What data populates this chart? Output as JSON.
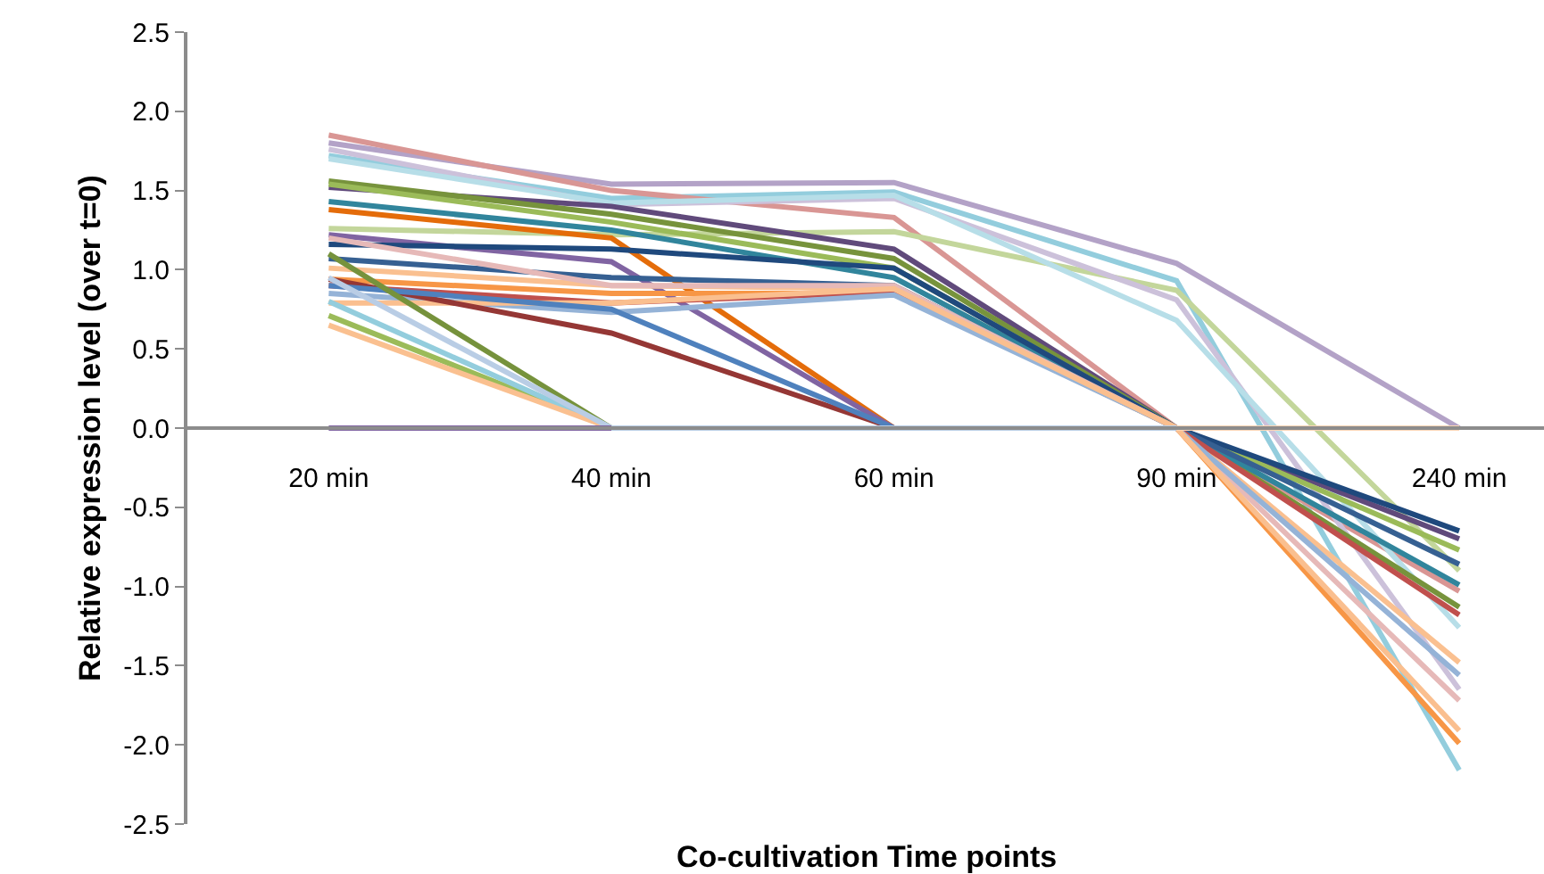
{
  "chart_data": {
    "type": "line",
    "xlabel": "Co-cultivation Time points",
    "ylabel": "Relative expression level (over t=0)",
    "categories": [
      "20 min",
      "40 min",
      "60 min",
      "90 min",
      "240 min"
    ],
    "ylim": [
      -2.5,
      2.5
    ],
    "yticks": [
      {
        "value": -2.5,
        "label": "-2.5"
      },
      {
        "value": -2.0,
        "label": "-2.0"
      },
      {
        "value": -1.5,
        "label": "-1.5"
      },
      {
        "value": -1.0,
        "label": "-1.0"
      },
      {
        "value": -0.5,
        "label": "-0.5"
      },
      {
        "value": 0,
        "label": "0.0"
      },
      {
        "value": 0.5,
        "label": "0.5"
      },
      {
        "value": 1.0,
        "label": "1.0"
      },
      {
        "value": 1.5,
        "label": "1.5"
      },
      {
        "value": 2.0,
        "label": "2.0"
      },
      {
        "value": 2.5,
        "label": "2.5"
      }
    ],
    "marker": "none",
    "line_style": "solid",
    "series": [
      {
        "color": "#b3a2c7",
        "values": [
          1.8,
          1.54,
          1.55,
          1.04,
          0.0
        ]
      },
      {
        "color": "#93cddd",
        "values": [
          1.72,
          1.45,
          1.49,
          0.93,
          -2.16
        ]
      },
      {
        "color": "#d99694",
        "values": [
          1.85,
          1.5,
          1.33,
          0.0,
          -1.03
        ]
      },
      {
        "color": "#c3d69b",
        "values": [
          1.26,
          1.22,
          1.24,
          0.87,
          -0.9
        ]
      },
      {
        "color": "#ccc1da",
        "values": [
          1.76,
          1.41,
          1.45,
          0.81,
          -1.65
        ]
      },
      {
        "color": "#b7dee8",
        "values": [
          1.7,
          1.42,
          1.47,
          0.68,
          -1.26
        ]
      },
      {
        "color": "#604a7b",
        "values": [
          1.52,
          1.4,
          1.13,
          0.0,
          -0.7
        ]
      },
      {
        "color": "#77933c",
        "values": [
          1.56,
          1.35,
          1.07,
          0.0,
          -1.13
        ]
      },
      {
        "color": "#9bbb59",
        "values": [
          1.54,
          1.3,
          1.01,
          0.0,
          -0.77
        ]
      },
      {
        "color": "#31859c",
        "values": [
          1.43,
          1.25,
          0.95,
          0.0,
          -0.99
        ]
      },
      {
        "color": "#e46c0a",
        "values": [
          1.38,
          1.2,
          0.0,
          null,
          null
        ]
      },
      {
        "color": "#8064a2",
        "values": [
          1.22,
          1.05,
          0.0,
          null,
          null
        ]
      },
      {
        "color": "#1f497d",
        "values": [
          1.16,
          1.13,
          1.01,
          0.0,
          -0.65
        ]
      },
      {
        "color": "#366092",
        "values": [
          1.07,
          0.95,
          0.9,
          0.0,
          -0.86
        ]
      },
      {
        "color": "#fac090",
        "values": [
          1.01,
          0.9,
          0.88,
          0.0,
          -1.48
        ]
      },
      {
        "color": "#f79646",
        "values": [
          0.94,
          0.85,
          0.85,
          0.0,
          -1.99
        ]
      },
      {
        "color": "#e6b9b8",
        "values": [
          1.2,
          0.9,
          0.9,
          0.0,
          -1.72
        ]
      },
      {
        "color": "#c0504d",
        "values": [
          0.9,
          0.79,
          0.86,
          0.0,
          -1.18
        ]
      },
      {
        "color": "#95b3d7",
        "values": [
          0.85,
          0.73,
          0.84,
          0.0,
          -1.56
        ]
      },
      {
        "color": "#fabf8f",
        "values": [
          0.79,
          0.79,
          0.88,
          0.0,
          -1.91
        ]
      },
      {
        "color": "#953735",
        "values": [
          0.94,
          0.6,
          0.0,
          null,
          null
        ]
      },
      {
        "color": "#4f81bd",
        "values": [
          0.9,
          0.75,
          0.0,
          null,
          null
        ]
      },
      {
        "color": "#76923c",
        "values": [
          1.1,
          0.0,
          null,
          null,
          null
        ]
      },
      {
        "color": "#9bbb59",
        "values": [
          0.71,
          0.0,
          null,
          null,
          null
        ]
      },
      {
        "color": "#93cddd",
        "values": [
          0.8,
          0.0,
          null,
          null,
          null
        ]
      },
      {
        "color": "#fac090",
        "values": [
          0.65,
          0.0,
          null,
          null,
          null
        ]
      },
      {
        "color": "#b9cde5",
        "values": [
          0.95,
          0.0,
          0.0,
          0.0,
          null
        ]
      },
      {
        "color": "#fbd5b5",
        "values": [
          null,
          null,
          null,
          0.0,
          0.0
        ]
      },
      {
        "color": "#8064a2",
        "values": [
          0.0,
          0.0,
          null,
          null,
          null
        ]
      }
    ]
  }
}
